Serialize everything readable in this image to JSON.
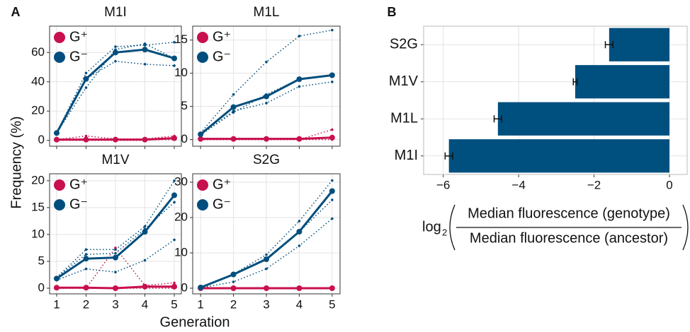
{
  "panel_labels": [
    "A",
    "B"
  ],
  "ylabel": "Frequency (%)",
  "xlabel": "Generation",
  "chart_data": [
    {
      "type": "line",
      "title": "M1I",
      "x": [
        1,
        2,
        3,
        4,
        5
      ],
      "xlim": [
        0.76,
        5.24
      ],
      "xticks": [
        1,
        2,
        3,
        4,
        5
      ],
      "xtick_labels": false,
      "ylim": [
        -4,
        78
      ],
      "yticks": [
        0,
        20,
        40,
        60
      ],
      "grid": true,
      "legend": "top-left",
      "series": [
        {
          "name": "G⁺",
          "color": "#c8104e",
          "values": [
            0.5,
            0.5,
            0.5,
            0.5,
            1.5
          ],
          "replicates": [
            [
              0.5,
              3,
              1,
              1,
              3
            ],
            [
              0.5,
              0.5,
              0.5,
              0.5,
              0.5
            ],
            [
              0,
              0,
              0,
              0,
              2
            ]
          ]
        },
        {
          "name": "G⁻",
          "color": "#004e7d",
          "values": [
            5,
            42,
            60,
            62,
            56
          ],
          "replicates": [
            [
              5,
              46,
              64,
              65,
              67
            ],
            [
              5,
              42,
              54,
              52,
              51
            ],
            [
              5,
              36,
              62,
              66,
              56
            ]
          ]
        }
      ]
    },
    {
      "type": "line",
      "title": "M1L",
      "x": [
        1,
        2,
        3,
        4,
        5
      ],
      "xlim": [
        0.76,
        5.24
      ],
      "xticks": [
        1,
        2,
        3,
        4,
        5
      ],
      "xtick_labels": false,
      "ylim": [
        -1,
        17.1
      ],
      "yticks": [
        0,
        5,
        10,
        15
      ],
      "grid": true,
      "legend": "top-left",
      "series": [
        {
          "name": "G⁺",
          "color": "#c8104e",
          "values": [
            0.1,
            0.1,
            0.1,
            0.1,
            0.3
          ],
          "replicates": [
            [
              0,
              0,
              0,
              0,
              1.5
            ],
            [
              0,
              0,
              0,
              0,
              0
            ],
            [
              0.2,
              0.2,
              0.2,
              0.2,
              0.3
            ]
          ]
        },
        {
          "name": "G⁻",
          "color": "#004e7d",
          "values": [
            0.8,
            4.9,
            6.5,
            9.1,
            9.7
          ],
          "replicates": [
            [
              1,
              6.8,
              11.7,
              15.6,
              16.5
            ],
            [
              0.7,
              4.3,
              5.5,
              8,
              8.7
            ],
            [
              0.7,
              4.1,
              6.8,
              9.1,
              9.8
            ]
          ]
        }
      ]
    },
    {
      "type": "line",
      "title": "M1V",
      "x": [
        1,
        2,
        3,
        4,
        5
      ],
      "xlim": [
        0.76,
        5.24
      ],
      "xticks": [
        1,
        2,
        3,
        4,
        5
      ],
      "xtick_labels": true,
      "ylim": [
        -1.05,
        21.3
      ],
      "yticks": [
        0,
        5,
        10,
        15,
        20
      ],
      "grid": true,
      "legend": "top-left",
      "series": [
        {
          "name": "G⁺",
          "color": "#c8104e",
          "values": [
            0.1,
            0.1,
            0,
            0.3,
            0.3
          ],
          "replicates": [
            [
              0,
              0,
              7.5,
              0.5,
              1
            ],
            [
              0,
              0,
              0,
              0,
              0
            ],
            [
              0,
              0,
              0,
              0.3,
              0.3
            ]
          ]
        },
        {
          "name": "G⁻",
          "color": "#004e7d",
          "values": [
            1.8,
            5.5,
            5.7,
            10.5,
            17.3
          ],
          "replicates": [
            [
              2,
              7.2,
              7.2,
              11.5,
              20
            ],
            [
              1.5,
              3.6,
              3,
              5.2,
              9
            ],
            [
              2,
              6.3,
              6.5,
              11,
              16
            ]
          ]
        }
      ]
    },
    {
      "type": "line",
      "title": "S2G",
      "x": [
        1,
        2,
        3,
        4,
        5
      ],
      "xlim": [
        0.76,
        5.24
      ],
      "xticks": [
        1,
        2,
        3,
        4,
        5
      ],
      "xtick_labels": true,
      "ylim": [
        -1.6,
        32.4
      ],
      "yticks": [
        0,
        10,
        20,
        30
      ],
      "grid": true,
      "legend": "top-left",
      "series": [
        {
          "name": "G⁺",
          "color": "#c8104e",
          "values": [
            0,
            0,
            0,
            0,
            0
          ],
          "replicates": [
            [
              0,
              0,
              0,
              0,
              0
            ],
            [
              0,
              0,
              0,
              0,
              0
            ],
            [
              0,
              0,
              0,
              0,
              0
            ]
          ]
        },
        {
          "name": "G⁻",
          "color": "#004e7d",
          "values": [
            0.2,
            3.9,
            8.2,
            16,
            27.5
          ],
          "replicates": [
            [
              0.2,
              4,
              9.5,
              19,
              30.5
            ],
            [
              0.1,
              1.8,
              5.5,
              12,
              19.7
            ],
            [
              0.2,
              4,
              8.5,
              16,
              25
            ]
          ]
        }
      ]
    },
    {
      "type": "hbar",
      "categories": [
        "S2G",
        "M1V",
        "M1L",
        "M1I"
      ],
      "values": [
        -1.6,
        -2.5,
        -4.55,
        -5.85
      ],
      "errors": [
        0.1,
        0.05,
        0.1,
        0.1
      ],
      "color": "#00507f",
      "xlim": [
        -6.52,
        0.47
      ],
      "xticks": [
        {
          "value": -6,
          "label": "−6"
        },
        {
          "value": -4,
          "label": "−4"
        },
        {
          "value": -2,
          "label": "−2"
        },
        0
      ],
      "grid": true,
      "xlabel": {
        "prefix": "log",
        "base": "2",
        "numerator": "Median fluorescence (genotype)",
        "denominator": "Median fluorescence (ancestor)"
      }
    }
  ]
}
